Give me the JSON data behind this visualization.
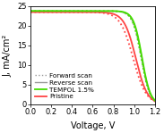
{
  "title": "",
  "xlabel": "Voltage, V",
  "ylabel": "J, mA/cm²",
  "xlim": [
    0.0,
    1.2
  ],
  "ylim": [
    0,
    25
  ],
  "yticks": [
    0,
    5,
    10,
    15,
    20,
    25
  ],
  "xticks": [
    0.0,
    0.2,
    0.4,
    0.6,
    0.8,
    1.0,
    1.2
  ],
  "legend_entries": [
    {
      "label": "Forward scan",
      "color": "#999999",
      "linestyle": "dotted",
      "linewidth": 1.0
    },
    {
      "label": "Reverse scan",
      "color": "#999999",
      "linestyle": "solid",
      "linewidth": 1.0
    },
    {
      "label": "TEMPOL 1.5%",
      "color": "#44dd00",
      "linestyle": "solid",
      "linewidth": 1.3
    },
    {
      "label": "Pristine",
      "color": "#ff4444",
      "linestyle": "solid",
      "linewidth": 1.3
    }
  ],
  "jsc_tempol": 23.8,
  "jsc_pristine": 23.5,
  "voc_tempol": 1.075,
  "voc_pristine": 1.015,
  "n_tempol": 25.0,
  "n_pristine": 18.0,
  "background_color": "#ffffff",
  "figsize": [
    1.83,
    1.49
  ],
  "dpi": 100
}
